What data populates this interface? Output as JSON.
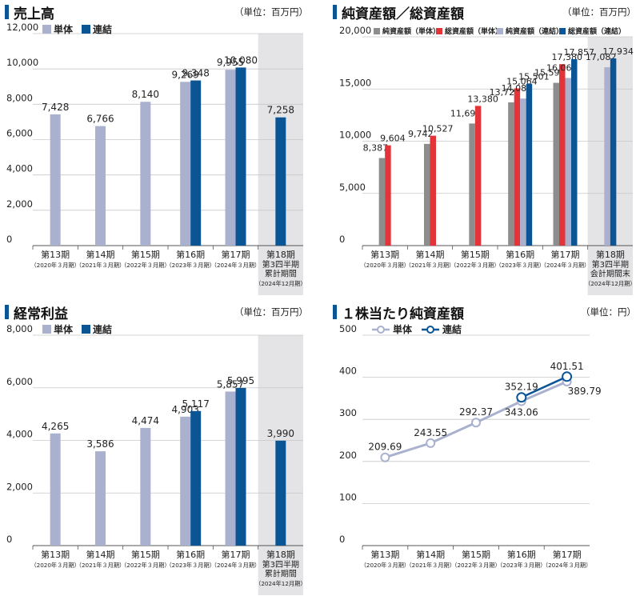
{
  "colors": {
    "single": "#a9b1cf",
    "consolidated": "#0b5595",
    "net_assets_single": "#8d8d8d",
    "total_assets_single": "#e3343a",
    "net_assets_consolidated": "#a9b1cf",
    "total_assets_consolidated": "#0b5595",
    "highlight_bg": "#e4e4e6",
    "title_marker": "#0b5595"
  },
  "categories_main": [
    {
      "name": "第13期",
      "sub": [
        "（2020年３月期）"
      ]
    },
    {
      "name": "第14期",
      "sub": [
        "（2021年３月期）"
      ]
    },
    {
      "name": "第15期",
      "sub": [
        "（2022年３月期）"
      ]
    },
    {
      "name": "第16期",
      "sub": [
        "（2023年３月期）"
      ]
    },
    {
      "name": "第17期",
      "sub": [
        "（2024年３月期）"
      ]
    },
    {
      "name": "第18期",
      "sub": [
        "第3四半期",
        "累計期間",
        "（2024年12月期）"
      ]
    }
  ],
  "categories_assets": [
    {
      "name": "第13期",
      "sub": [
        "（2020年３月期）"
      ]
    },
    {
      "name": "第14期",
      "sub": [
        "（2021年３月期）"
      ]
    },
    {
      "name": "第15期",
      "sub": [
        "（2022年３月期）"
      ]
    },
    {
      "name": "第16期",
      "sub": [
        "（2023年３月期）"
      ]
    },
    {
      "name": "第17期",
      "sub": [
        "（2024年３月期）"
      ]
    },
    {
      "name": "第18期",
      "sub": [
        "第3四半期",
        "会計期間末",
        "（2024年12月期）"
      ]
    }
  ],
  "categories_bps": [
    {
      "name": "第13期",
      "sub": [
        "（2020年３月期）"
      ]
    },
    {
      "name": "第14期",
      "sub": [
        "（2021年３月期）"
      ]
    },
    {
      "name": "第15期",
      "sub": [
        "（2022年３月期）"
      ]
    },
    {
      "name": "第16期",
      "sub": [
        "（2023年３月期）"
      ]
    },
    {
      "name": "第17期",
      "sub": [
        "（2024年３月期）"
      ]
    }
  ],
  "chart_data": [
    {
      "id": "sales",
      "type": "bar",
      "title": "売上高",
      "unit": "（単位：百万円）",
      "ylim": [
        0,
        12000
      ],
      "yticks": [
        "12,000",
        "10,000",
        "8,000",
        "6,000",
        "4,000",
        "2,000",
        "0"
      ],
      "grid": true,
      "legend_position": "top-left",
      "highlight_last_category": true,
      "series": [
        {
          "name": "単体",
          "values": [
            7428,
            6766,
            8140,
            9269,
            9955,
            null
          ],
          "labels": [
            "7,428",
            "6,766",
            "8,140",
            "9,269",
            "9,955",
            ""
          ]
        },
        {
          "name": "連結",
          "values": [
            null,
            null,
            null,
            9348,
            10080,
            7258
          ],
          "labels": [
            "",
            "",
            "",
            "9,348",
            "10,080",
            "7,258"
          ]
        }
      ]
    },
    {
      "id": "assets",
      "type": "bar",
      "title": "純資産額／総資産額",
      "unit": "（単位：百万円）",
      "ylim": [
        0,
        20000
      ],
      "yticks": [
        "20,000",
        "15,000",
        "10,000",
        "5,000",
        "0"
      ],
      "grid": true,
      "legend_position": "top",
      "highlight_last_category": true,
      "series": [
        {
          "name": "純資産額（単体）",
          "values": [
            8387,
            9742,
            11694,
            13722,
            15591,
            null
          ],
          "labels": [
            "8,387",
            "9,742",
            "11,694",
            "13,722",
            "15,591",
            ""
          ]
        },
        {
          "name": "総資産額（単体）",
          "values": [
            9604,
            10527,
            13380,
            15064,
            17380,
            null
          ],
          "labels": [
            "9,604",
            "10,527",
            "13,380",
            "15,064",
            "17,380",
            ""
          ]
        },
        {
          "name": "純資産額（連結）",
          "values": [
            null,
            null,
            null,
            14087,
            16060,
            17082
          ],
          "labels": [
            "",
            "",
            "",
            "14,087",
            "16,060",
            "17,082"
          ]
        },
        {
          "name": "総資産額（連結）",
          "values": [
            null,
            null,
            null,
            15501,
            17857,
            17934
          ],
          "labels": [
            "",
            "",
            "",
            "15,501",
            "17,857",
            "17,934"
          ]
        }
      ]
    },
    {
      "id": "ordinary",
      "type": "bar",
      "title": "経常利益",
      "unit": "（単位：百万円）",
      "ylim": [
        0,
        8000
      ],
      "yticks": [
        "8,000",
        "6,000",
        "4,000",
        "2,000",
        "0"
      ],
      "grid": true,
      "legend_position": "top-left",
      "highlight_last_category": true,
      "series": [
        {
          "name": "単体",
          "values": [
            4265,
            3586,
            4474,
            4903,
            5857,
            null
          ],
          "labels": [
            "4,265",
            "3,586",
            "4,474",
            "4,903",
            "5,857",
            ""
          ]
        },
        {
          "name": "連結",
          "values": [
            null,
            null,
            null,
            5117,
            5995,
            3990
          ],
          "labels": [
            "",
            "",
            "",
            "5,117",
            "5,995",
            "3,990"
          ]
        }
      ]
    },
    {
      "id": "bps",
      "type": "line",
      "title": "１株当たり純資産額",
      "unit": "（単位：円）",
      "ylim": [
        0,
        500
      ],
      "yticks": [
        "500",
        "400",
        "300",
        "200",
        "100",
        "0"
      ],
      "grid": true,
      "legend_position": "top-left",
      "series": [
        {
          "name": "単体",
          "values": [
            209.69,
            243.55,
            292.37,
            343.06,
            389.79
          ],
          "labels": [
            "209.69",
            "243.55",
            "292.37",
            "343.06",
            "389.79"
          ]
        },
        {
          "name": "連結",
          "values": [
            null,
            null,
            null,
            352.19,
            401.51
          ],
          "labels": [
            "",
            "",
            "",
            "352.19",
            "401.51"
          ]
        }
      ]
    }
  ]
}
